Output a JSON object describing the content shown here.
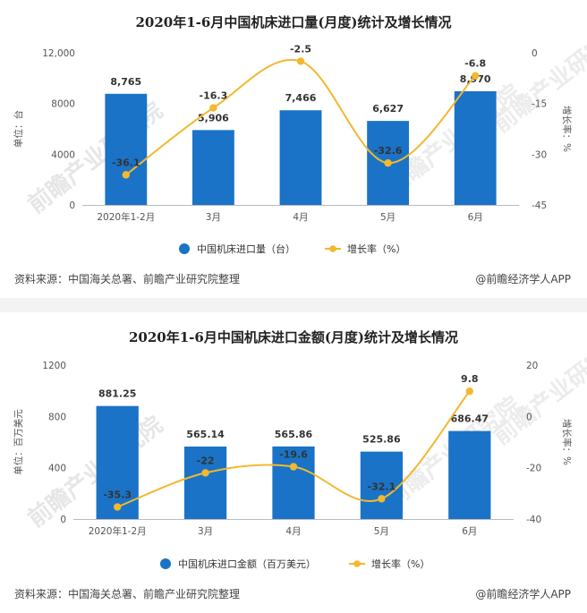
{
  "charts": [
    {
      "title": "2020年1-6月中国机床进口量(月度)统计及增长情况",
      "source": "资料来源：中国海关总署、前瞻产业研究院整理",
      "credit": "@前瞻经济学人APP",
      "watermark": "前瞻产业研究院",
      "colors": {
        "bar": "#1a73c6",
        "line": "#f2b82f"
      },
      "legend": {
        "bar_label": "中国机床进口量（台）",
        "line_label": "增长率（%）"
      }
    },
    {
      "title": "2020年1-6月中国机床进口金额(月度)统计及增长情况",
      "source": "资料来源：中国海关总署、前瞻产业研究院整理",
      "credit": "@前瞻经济学人APP",
      "watermark": "前瞻产业研究院",
      "colors": {
        "bar": "#1a73c6",
        "line": "#f2b82f"
      },
      "legend": {
        "bar_label": "中国机床进口金额（百万美元）",
        "line_label": "增长率（%）"
      }
    }
  ],
  "chart_data": [
    {
      "type": "bar",
      "title": "2020年1-6月中国机床进口量(月度)统计及增长情况",
      "categories": [
        "2020年1-2月",
        "3月",
        "4月",
        "5月",
        "6月"
      ],
      "series": [
        {
          "name": "中国机床进口量（台）",
          "type": "bar",
          "axis": "left",
          "values": [
            8765,
            5906,
            7466,
            6627,
            8970
          ],
          "labels": [
            "8,765",
            "5,906",
            "7,466",
            "6,627",
            "8,970"
          ]
        },
        {
          "name": "增长率（%）",
          "type": "line",
          "axis": "right",
          "values": [
            -36.1,
            -16.3,
            -2.5,
            -32.6,
            -6.8
          ],
          "labels": [
            "-36.1",
            "-16.3",
            "-2.5",
            "-32.6",
            "-6.8"
          ]
        }
      ],
      "ylabel": "单位：台",
      "y2label": "增长率：%",
      "ylim": [
        0,
        12000
      ],
      "yticks": [
        "0",
        "4000",
        "8000",
        "12,000"
      ],
      "y2lim": [
        -45,
        0
      ],
      "y2ticks": [
        "-45",
        "-30",
        "-15",
        "0"
      ],
      "legend_position": "bottom"
    },
    {
      "type": "bar",
      "title": "2020年1-6月中国机床进口金额(月度)统计及增长情况",
      "categories": [
        "2020年1-2月",
        "3月",
        "4月",
        "5月",
        "6月"
      ],
      "series": [
        {
          "name": "中国机床进口金额（百万美元）",
          "type": "bar",
          "axis": "left",
          "values": [
            881.25,
            565.14,
            565.86,
            525.86,
            686.47
          ],
          "labels": [
            "881.25",
            "565.14",
            "565.86",
            "525.86",
            "686.47"
          ]
        },
        {
          "name": "增长率（%）",
          "type": "line",
          "axis": "right",
          "values": [
            -35.3,
            -22,
            -19.6,
            -32.1,
            9.8
          ],
          "labels": [
            "-35.3",
            "-22",
            "-19.6",
            "-32.1",
            "9.8"
          ]
        }
      ],
      "ylabel": "单位：百万美元",
      "y2label": "增长率：%",
      "ylim": [
        0,
        1200
      ],
      "yticks": [
        "0",
        "400",
        "800",
        "1200"
      ],
      "y2lim": [
        -40,
        20
      ],
      "y2ticks": [
        "-40",
        "-20",
        "0",
        "20"
      ],
      "legend_position": "bottom"
    }
  ]
}
